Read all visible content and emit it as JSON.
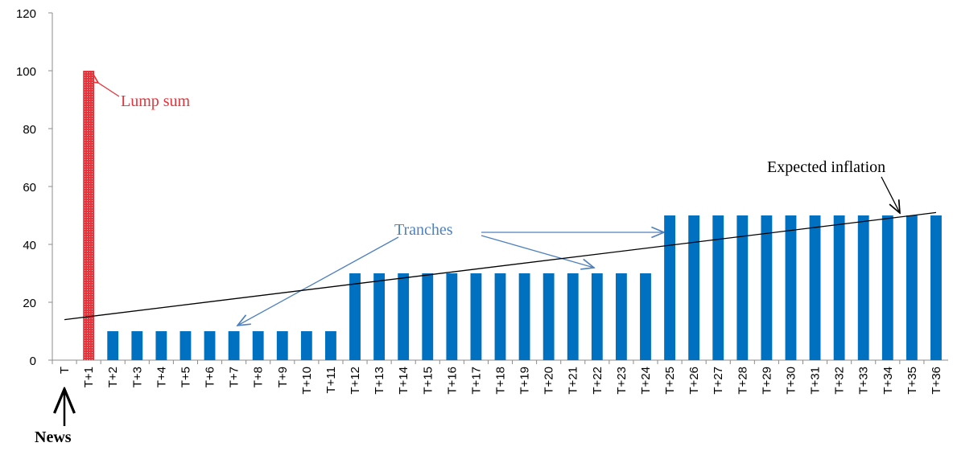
{
  "chart_data": {
    "type": "bar",
    "categories": [
      "T",
      "T+1",
      "T+2",
      "T+3",
      "T+4",
      "T+5",
      "T+6",
      "T+7",
      "T+8",
      "T+9",
      "T+10",
      "T+11",
      "T+12",
      "T+13",
      "T+14",
      "T+15",
      "T+16",
      "T+17",
      "T+18",
      "T+19",
      "T+20",
      "T+21",
      "T+22",
      "T+23",
      "T+24",
      "T+25",
      "T+26",
      "T+27",
      "T+28",
      "T+29",
      "T+30",
      "T+31",
      "T+32",
      "T+33",
      "T+34",
      "T+35",
      "T+36"
    ],
    "values": [
      null,
      100,
      10,
      10,
      10,
      10,
      10,
      10,
      10,
      10,
      10,
      10,
      30,
      30,
      30,
      30,
      30,
      30,
      30,
      30,
      30,
      30,
      30,
      30,
      30,
      50,
      50,
      50,
      50,
      50,
      50,
      50,
      50,
      50,
      50,
      50,
      50
    ],
    "colors": [
      "#0070c0",
      "#e8333a",
      "#0070c0",
      "#0070c0",
      "#0070c0",
      "#0070c0",
      "#0070c0",
      "#0070c0",
      "#0070c0",
      "#0070c0",
      "#0070c0",
      "#0070c0",
      "#0070c0",
      "#0070c0",
      "#0070c0",
      "#0070c0",
      "#0070c0",
      "#0070c0",
      "#0070c0",
      "#0070c0",
      "#0070c0",
      "#0070c0",
      "#0070c0",
      "#0070c0",
      "#0070c0",
      "#0070c0",
      "#0070c0",
      "#0070c0",
      "#0070c0",
      "#0070c0",
      "#0070c0",
      "#0070c0",
      "#0070c0",
      "#0070c0",
      "#0070c0",
      "#0070c0",
      "#0070c0"
    ],
    "trend_line": [
      14,
      51
    ],
    "trend_color": "#000000",
    "ylim": [
      0,
      120
    ],
    "yticks": [
      0,
      20,
      40,
      60,
      80,
      100,
      120
    ],
    "grid": false,
    "annotations": {
      "lump_sum": "Lump sum",
      "tranches": "Tranches",
      "expected_inflation": "Expected inflation",
      "news": "News"
    }
  }
}
